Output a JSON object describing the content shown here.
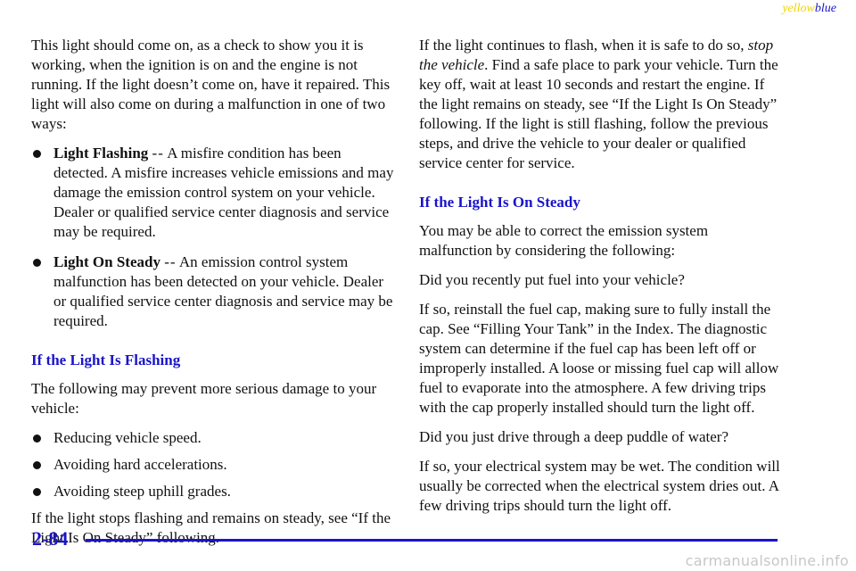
{
  "header": {
    "mark_yellow": "yellow",
    "mark_blue": "blue"
  },
  "left_column": {
    "intro": "This light should come on, as a check to show you it is working, when the ignition is on and the engine is not running. If the light doesn’t come on, have it repaired. This light will also come on during a malfunction in one of two ways:",
    "bullets": [
      {
        "term": "Light Flashing",
        "dash": "--",
        "text": "A misfire condition has been detected. A misfire increases vehicle emissions and may damage the emission control system on your vehicle. Dealer or qualified service center diagnosis and service may be required."
      },
      {
        "term": "Light On Steady",
        "dash": "--",
        "text": "An emission control system malfunction has been detected on your vehicle. Dealer or qualified service center diagnosis and service may be required."
      }
    ],
    "heading": "If the Light Is Flashing",
    "lead": "The following may prevent more serious damage to your vehicle:",
    "tips": [
      "Reducing vehicle speed.",
      "Avoiding hard accelerations.",
      "Avoiding steep uphill grades."
    ],
    "closing": "If the light stops flashing and remains on steady, see “If the Light Is On Steady” following."
  },
  "right_column": {
    "p1_before": "If the light continues to flash, when it is safe to do so,",
    "p1_italic": "stop the vehicle",
    "p1_after": ". Find a safe place to park your vehicle. Turn the key off, wait at least 10 seconds and restart the engine. If the light remains on steady, see “If the Light Is On Steady” following. If the light is still flashing, follow the previous steps, and drive the vehicle to your dealer or qualified service center for service.",
    "heading": "If the Light Is On Steady",
    "p2": "You may be able to correct the emission system malfunction by considering the following:",
    "q1": "Did you recently put fuel into your vehicle?",
    "a1": "If so, reinstall the fuel cap, making sure to fully install the cap. See “Filling Your Tank” in the Index. The diagnostic system can determine if the fuel cap has been left off or improperly installed. A loose or missing fuel cap will allow fuel to evaporate into the atmosphere. A few driving trips with the cap properly installed should turn the light off.",
    "q2": "Did you just drive through a deep puddle of water?",
    "a2": "If so, your electrical system may be wet. The condition will usually be corrected when the electrical system dries out. A few driving trips should turn the light off."
  },
  "footer": {
    "page_number": "2-84",
    "watermark": "carmanualsonline.info"
  },
  "colors": {
    "accent_blue": "#1a14c8",
    "accent_yellow": "#f2d400",
    "watermark_gray": "#c7c7c7"
  }
}
